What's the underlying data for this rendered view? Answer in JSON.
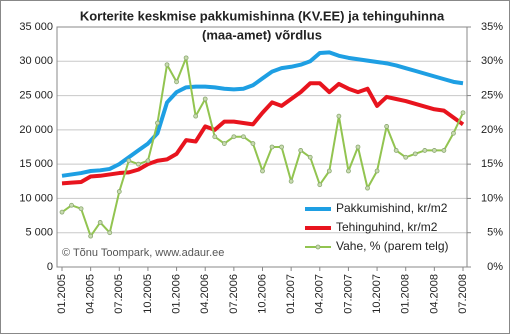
{
  "chart_data": {
    "type": "line",
    "title": [
      "Korterite keskmise pakkumishinna (KV.EE) ja tehinguhinna",
      "(maa-amet) võrdlus"
    ],
    "annotation": "© Tõnu Toompark, www.adaur.ee",
    "categories": [
      "01.2005",
      null,
      null,
      "04.2005",
      null,
      null,
      "07.2005",
      null,
      null,
      "10.2005",
      null,
      null,
      "01.2006",
      null,
      null,
      "04.2006",
      null,
      null,
      "07.2006",
      null,
      null,
      "10.2006",
      null,
      null,
      "01.2007",
      null,
      null,
      "04.2007",
      null,
      null,
      "07.2007",
      null,
      null,
      "10.2007",
      null,
      null,
      "01.2008",
      null,
      null,
      "04.2008",
      null,
      null,
      "07.2008"
    ],
    "series": [
      {
        "name": "Pakkumishind, kr/m2",
        "color": "#1e9fe3",
        "axis": "y",
        "values": [
          13300,
          13500,
          13700,
          14000,
          14100,
          14300,
          15000,
          16000,
          17000,
          18000,
          19500,
          24000,
          25500,
          26200,
          26300,
          26300,
          26200,
          26000,
          25900,
          26000,
          26500,
          27500,
          28500,
          29000,
          29200,
          29500,
          30000,
          31200,
          31300,
          30800,
          30500,
          30300,
          30100,
          29900,
          29700,
          29400,
          29000,
          28600,
          28200,
          27800,
          27400,
          27000,
          26800
        ]
      },
      {
        "name": "Tehinguhind, kr/m2",
        "color": "#e8141e",
        "axis": "y",
        "values": [
          12200,
          12300,
          12400,
          13200,
          13300,
          13500,
          13700,
          13800,
          14200,
          15000,
          15500,
          15700,
          16500,
          18500,
          18300,
          20500,
          20000,
          21200,
          21200,
          21000,
          20800,
          22500,
          24000,
          23500,
          24500,
          25500,
          26800,
          26800,
          25500,
          26700,
          26000,
          25500,
          26000,
          23500,
          24800,
          24500,
          24200,
          23800,
          23400,
          23000,
          22800,
          21800,
          20800
        ]
      },
      {
        "name": "Vahe, % (parem telg)",
        "color": "#92c450",
        "axis": "y2",
        "values": [
          8,
          9,
          8.5,
          4.5,
          6.5,
          5,
          11,
          15.5,
          15,
          15.5,
          21,
          29.5,
          27,
          30.5,
          22,
          24.5,
          19,
          18,
          19,
          19,
          18,
          14,
          17.5,
          17.5,
          12.5,
          17,
          16,
          12,
          14,
          22,
          14,
          17.5,
          11.5,
          14,
          20.5,
          17,
          16,
          16.5,
          17,
          17,
          17,
          19.5,
          22.5
        ]
      }
    ],
    "ylim": [
      0,
      35000
    ],
    "yticks": [
      0,
      {
        "value": 5000,
        "label": "5 000"
      },
      {
        "value": 10000,
        "label": "10 000"
      },
      {
        "value": 15000,
        "label": "15 000"
      },
      {
        "value": 20000,
        "label": "20 000"
      },
      {
        "value": 25000,
        "label": "25 000"
      },
      {
        "value": 30000,
        "label": "30 000"
      },
      {
        "value": 35000,
        "label": "35 000"
      }
    ],
    "y2lim": [
      0,
      35
    ],
    "y2ticks": [
      {
        "value": 0,
        "label": "0%"
      },
      {
        "value": 5,
        "label": "5%"
      },
      {
        "value": 10,
        "label": "10%"
      },
      {
        "value": 15,
        "label": "15%"
      },
      {
        "value": 20,
        "label": "20%"
      },
      {
        "value": 25,
        "label": "25%"
      },
      {
        "value": 30,
        "label": "30%"
      },
      {
        "value": 35,
        "label": "35%"
      }
    ],
    "grid": true,
    "legend": "lower-right"
  }
}
